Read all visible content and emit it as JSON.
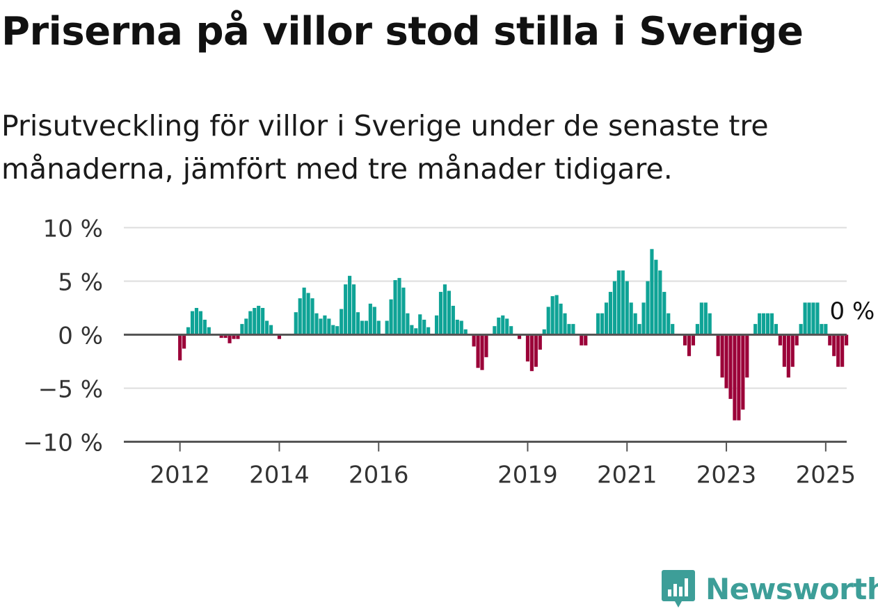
{
  "title": "Priserna på villor stod stilla i Sverige",
  "subtitle": "Prisutveckling för villor i Sverige under de senaste tre månaderna, jämfört med tre månader tidigare.",
  "brand": {
    "name": "Newsworthy",
    "color": "#3d9e98",
    "icon": "newsworthy-chart-icon"
  },
  "colors": {
    "positive": "#0fa396",
    "negative": "#9b0038",
    "grid": "#dddddd",
    "axis": "#555555",
    "text": "#333333"
  },
  "chart_data": {
    "type": "bar",
    "ylim": [
      -10,
      10
    ],
    "y_ticks": [
      {
        "value": 10,
        "label": "10 %"
      },
      {
        "value": 5,
        "label": "5 %"
      },
      {
        "value": 0,
        "label": "0 %"
      },
      {
        "value": -5,
        "label": "−5 %"
      },
      {
        "value": -10,
        "label": "−10 %"
      }
    ],
    "x_ticks": [
      {
        "year": 2012,
        "label": "2012"
      },
      {
        "year": 2014,
        "label": "2014"
      },
      {
        "year": 2016,
        "label": "2016"
      },
      {
        "year": 2019,
        "label": "2019"
      },
      {
        "year": 2021,
        "label": "2021"
      },
      {
        "year": 2023,
        "label": "2023"
      },
      {
        "year": 2025,
        "label": "2025"
      }
    ],
    "x_start": "2011-01",
    "last_label": "0 %",
    "grid": true,
    "values": [
      0,
      0,
      0,
      0,
      0,
      0,
      0,
      0,
      0,
      0,
      0,
      0,
      -2.4,
      -1.3,
      0.7,
      2.2,
      2.5,
      2.2,
      1.4,
      0.7,
      0,
      0,
      -0.3,
      -0.3,
      -0.8,
      -0.4,
      -0.4,
      1.0,
      1.5,
      2.2,
      2.5,
      2.7,
      2.5,
      1.3,
      0.9,
      0,
      -0.4,
      0,
      0,
      0,
      2.1,
      3.4,
      4.4,
      3.9,
      3.4,
      2.0,
      1.5,
      1.8,
      1.5,
      0.9,
      0.8,
      2.4,
      4.7,
      5.5,
      4.7,
      2.1,
      1.3,
      1.3,
      2.9,
      2.6,
      1.3,
      0,
      1.3,
      3.3,
      5.1,
      5.3,
      4.4,
      2.0,
      0.9,
      0.6,
      1.9,
      1.4,
      0.7,
      0,
      1.8,
      4.0,
      4.7,
      4.1,
      2.7,
      1.4,
      1.3,
      0.5,
      0,
      -1.1,
      -3.1,
      -3.3,
      -2.1,
      0,
      0.8,
      1.6,
      1.8,
      1.5,
      0.8,
      0,
      -0.4,
      0,
      -2.5,
      -3.4,
      -3.0,
      -1.4,
      0.5,
      2.6,
      3.6,
      3.7,
      2.9,
      2.0,
      1.0,
      1.0,
      0,
      -1.0,
      -1.0,
      0,
      0,
      2.0,
      2.0,
      3.0,
      4.0,
      5.0,
      6.0,
      6.0,
      5.0,
      3.0,
      2.0,
      1.0,
      3.0,
      5.0,
      8.0,
      7.0,
      6.0,
      4.0,
      2.0,
      1.0,
      0,
      0,
      -1.0,
      -2.0,
      -1.0,
      1.0,
      3.0,
      3.0,
      2.0,
      0,
      -2.0,
      -4.0,
      -5.0,
      -6.0,
      -8.0,
      -8.0,
      -7.0,
      -4.0,
      0,
      1.0,
      2.0,
      2.0,
      2.0,
      2.0,
      1.0,
      -1.0,
      -3.0,
      -4.0,
      -3.0,
      -1.0,
      1.0,
      3.0,
      3.0,
      3.0,
      3.0,
      1.0,
      1.0,
      -1.0,
      -2.0,
      -3.0,
      -3.0,
      -1.0,
      0
    ]
  }
}
